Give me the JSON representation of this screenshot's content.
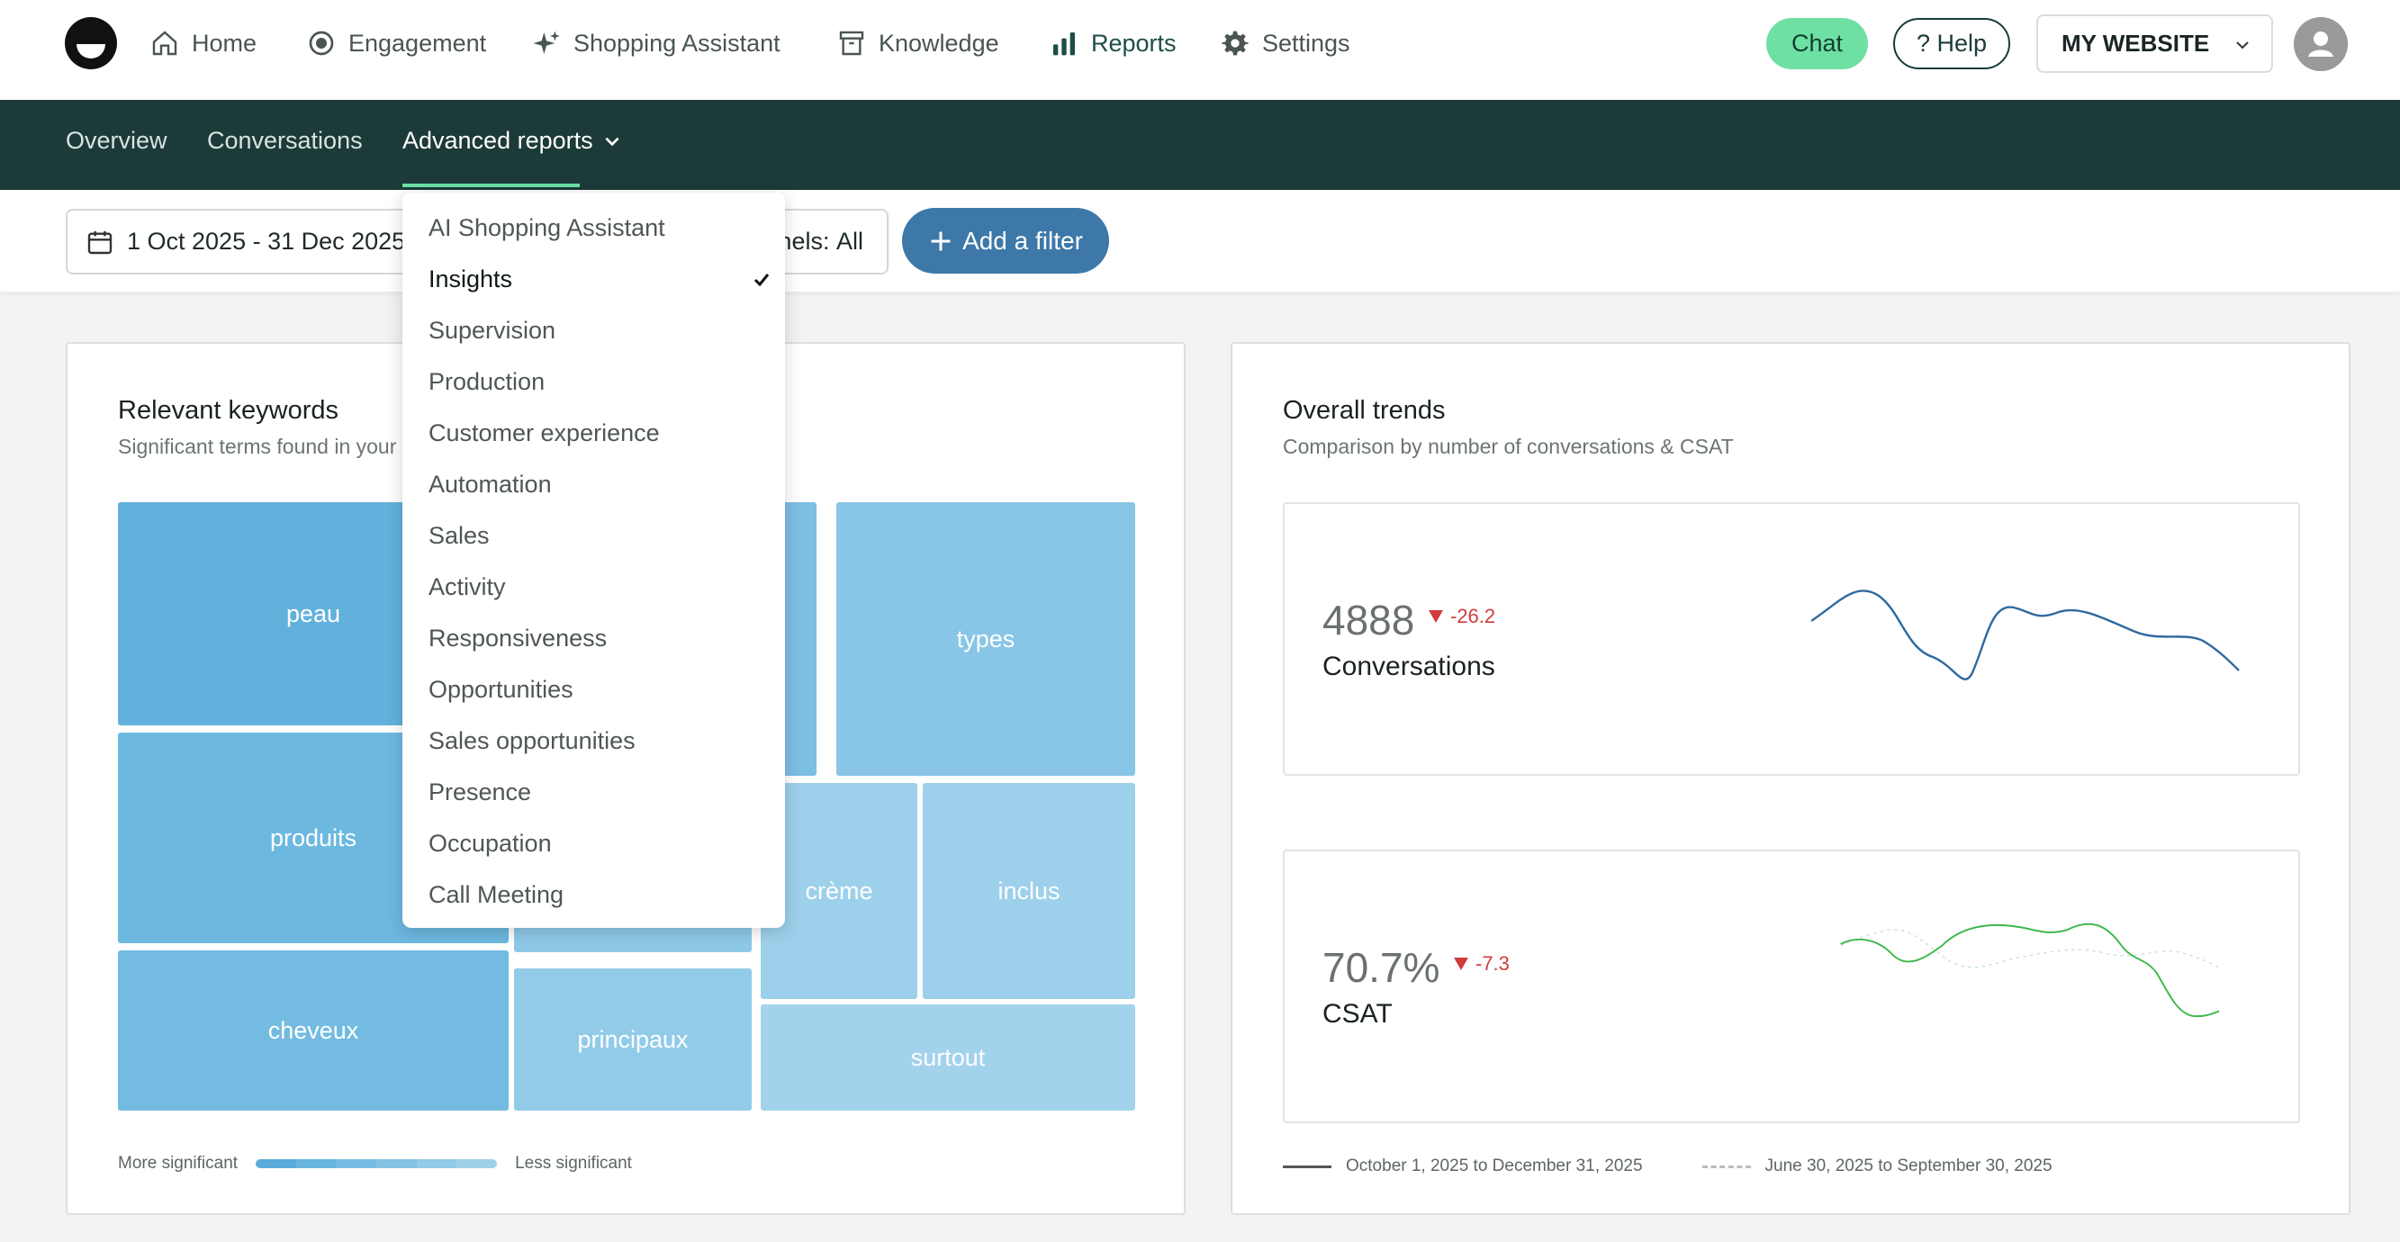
{
  "nav": {
    "items": [
      {
        "label": "Home",
        "icon": "home-icon"
      },
      {
        "label": "Engagement",
        "icon": "target-icon"
      },
      {
        "label": "Shopping Assistant",
        "icon": "sparkle-icon"
      },
      {
        "label": "Knowledge",
        "icon": "archive-icon"
      },
      {
        "label": "Reports",
        "icon": "bar-chart-icon"
      },
      {
        "label": "Settings",
        "icon": "gear-icon"
      }
    ],
    "active": "Reports",
    "chat_label": "Chat",
    "help_label": "? Help",
    "website_label": "MY WEBSITE"
  },
  "subnav": {
    "overview": "Overview",
    "conversations": "Conversations",
    "advanced": "Advanced reports"
  },
  "filters": {
    "date_range": "1 Oct 2025 - 31 Dec 2025",
    "channels_label": "nels:",
    "channels_value": "All",
    "add_filter": "Add a filter"
  },
  "dropdown": {
    "items": [
      "AI Shopping Assistant",
      "Insights",
      "Supervision",
      "Production",
      "Customer experience",
      "Automation",
      "Sales",
      "Activity",
      "Responsiveness",
      "Opportunities",
      "Sales opportunities",
      "Presence",
      "Occupation",
      "Call Meeting"
    ],
    "selected": "Insights"
  },
  "keywords_card": {
    "title": "Relevant keywords",
    "subtitle": "Significant terms found in your",
    "tiles": [
      "peau",
      "types",
      "produits",
      "crème",
      "inclus",
      "cheveux",
      "principaux",
      "surtout"
    ],
    "legend_more": "More significant",
    "legend_less": "Less significant"
  },
  "trends_card": {
    "title": "Overall trends",
    "subtitle": "Comparison by number of conversations & CSAT",
    "conversations": {
      "value": "4888",
      "delta": "-26.2",
      "label": "Conversations"
    },
    "csat": {
      "value": "70.7%",
      "delta": "-7.3",
      "label": "CSAT"
    },
    "legend_current": "October 1, 2025 to December 31, 2025",
    "legend_previous": "June 30, 2025 to September 30, 2025"
  },
  "colors": {
    "brand_dark": "#1c3a38",
    "accent_green": "#6ee0a4",
    "primary_blue": "#3d78a8",
    "negative_red": "#d03c3c",
    "csat_line": "#3cb84a",
    "conv_line": "#2e6aa0"
  }
}
